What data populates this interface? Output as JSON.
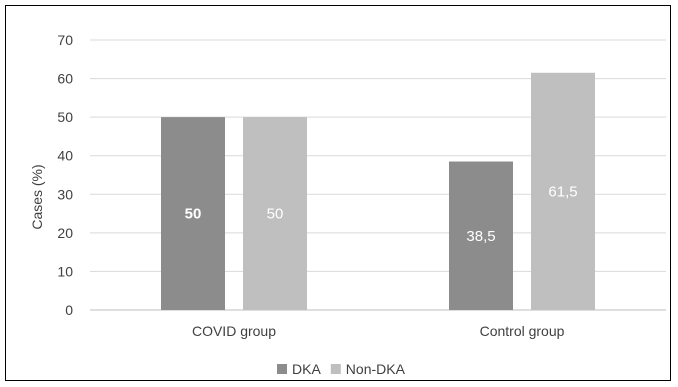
{
  "chart_data": {
    "type": "bar",
    "title": "",
    "xlabel": "",
    "ylabel": "Cases (%)",
    "ylim": [
      0,
      70
    ],
    "yticks": [
      0,
      10,
      20,
      30,
      40,
      50,
      60,
      70
    ],
    "grid": true,
    "legend_position": "bottom",
    "categories": [
      "COVID group",
      "Control group"
    ],
    "series": [
      {
        "name": "DKA",
        "color": "#8c8c8c",
        "values": [
          50,
          38.5
        ],
        "labels": [
          "50",
          "38,5"
        ],
        "label_bold": [
          true,
          false
        ]
      },
      {
        "name": "Non-DKA",
        "color": "#bfbfbf",
        "values": [
          50,
          61.5
        ],
        "labels": [
          "50",
          "61,5"
        ],
        "label_bold": [
          false,
          false
        ]
      }
    ]
  }
}
